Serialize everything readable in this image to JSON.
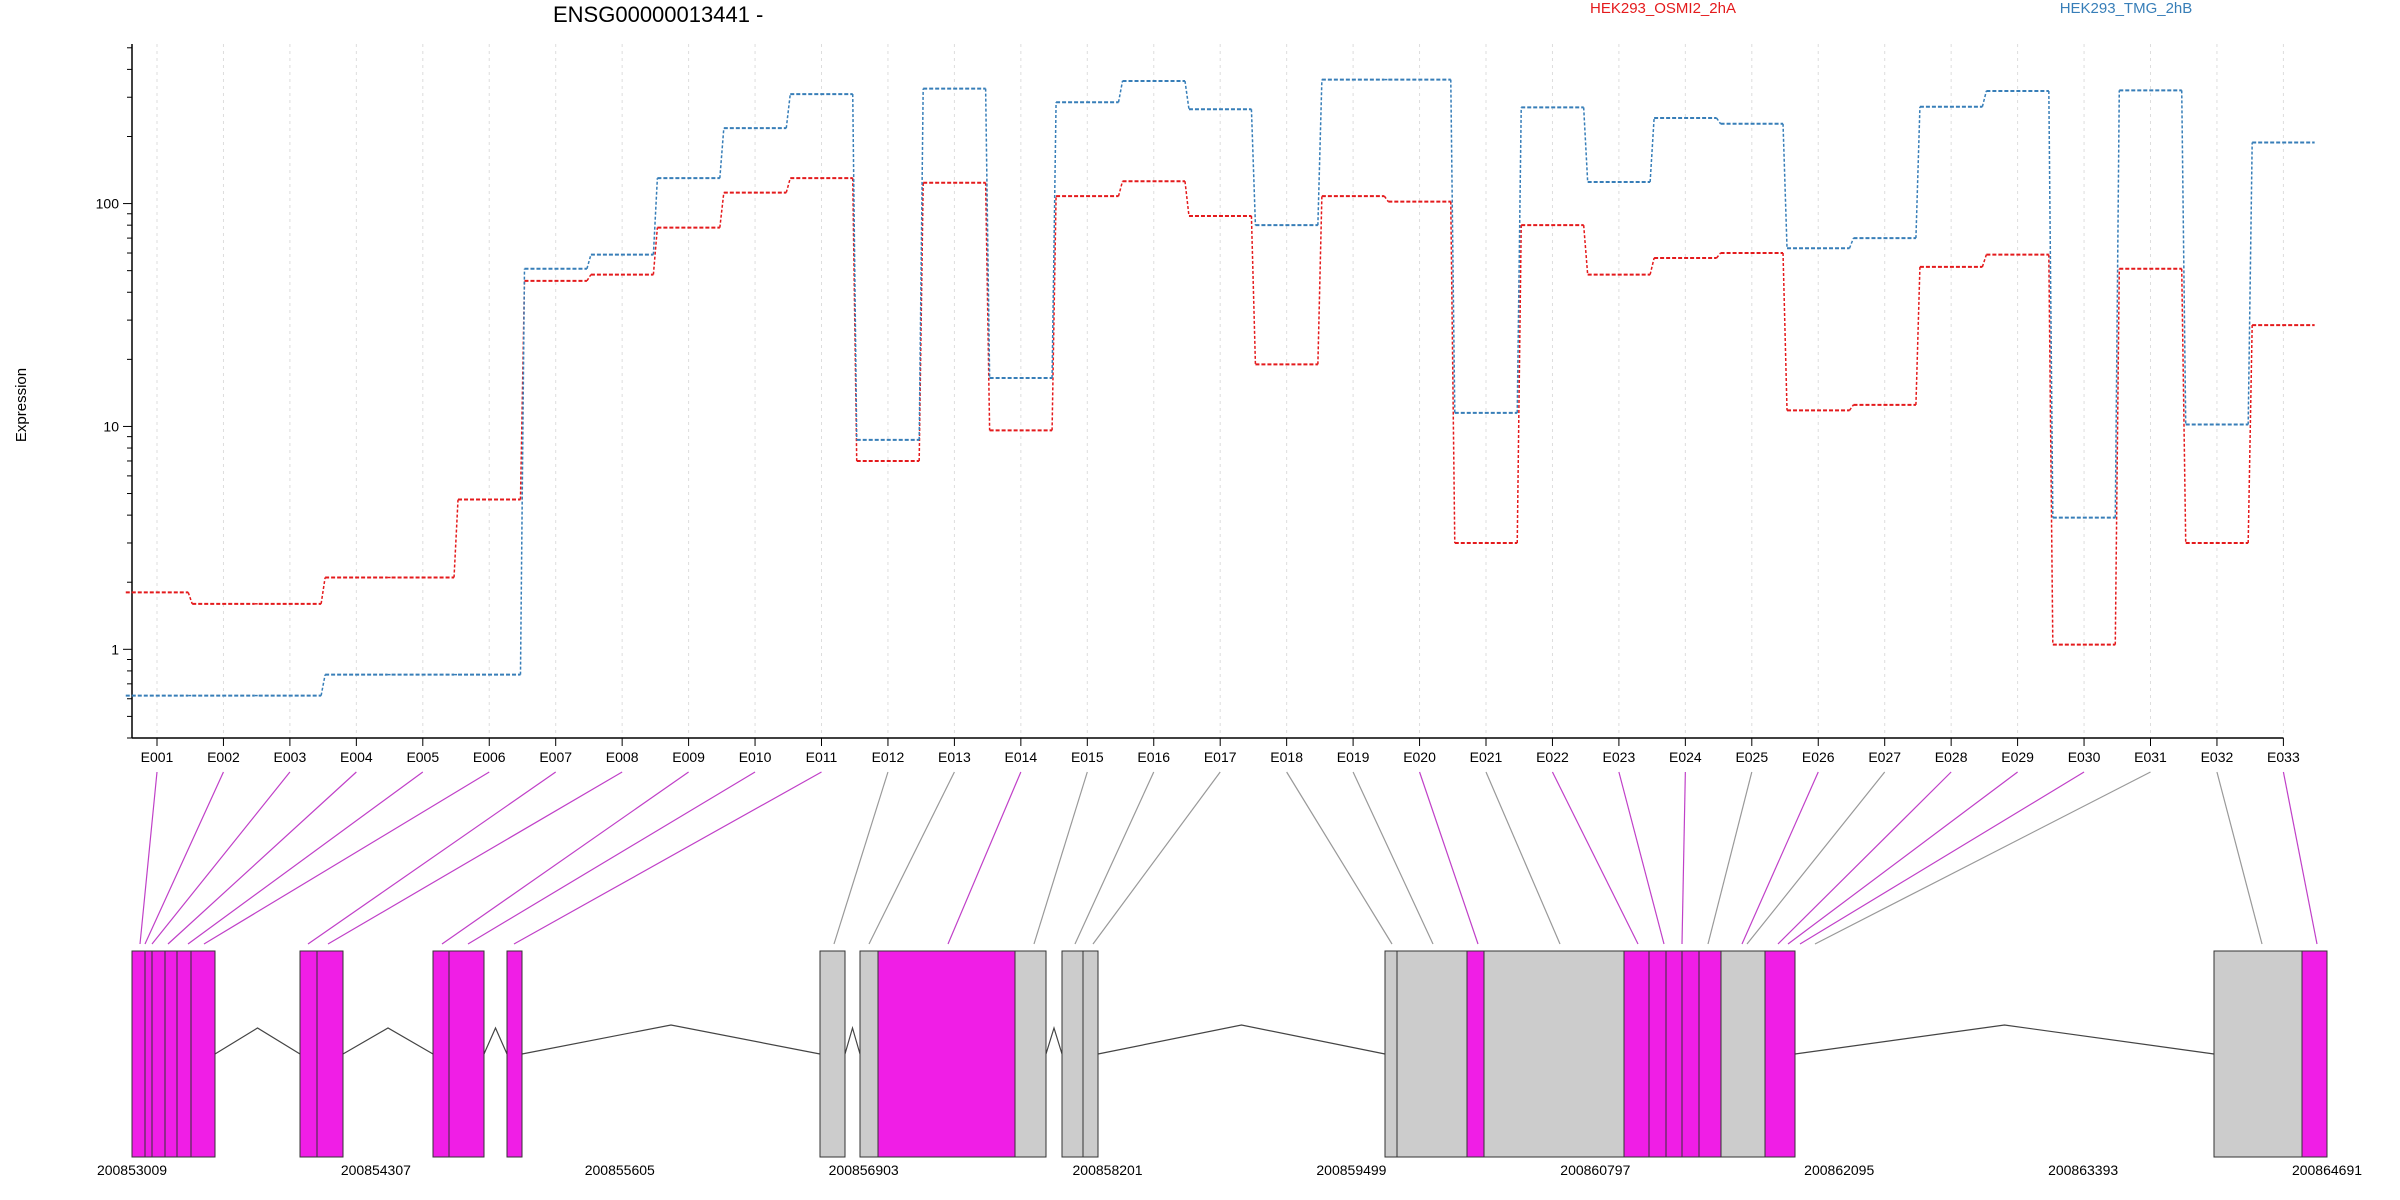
{
  "chart_data": {
    "type": "line",
    "title": "ENSG00000013441 -",
    "ylabel": "Expression",
    "xlabel": "",
    "y_scale": "log",
    "ylim": [
      0.4,
      520
    ],
    "grid": "vertical dotted lines at exon ticks",
    "legend": "top-right",
    "x_tick_labels": [
      1,
      10,
      100
    ],
    "categories": [
      "E001",
      "E002",
      "E003",
      "E004",
      "E005",
      "E006",
      "E007",
      "E008",
      "E009",
      "E010",
      "E011",
      "E012",
      "E013",
      "E014",
      "E015",
      "E016",
      "E017",
      "E018",
      "E019",
      "E020",
      "E021",
      "E022",
      "E023",
      "E024",
      "E025",
      "E026",
      "E027",
      "E028",
      "E029",
      "E030",
      "E031",
      "E032",
      "E033"
    ],
    "series": [
      {
        "name": "HEK293_OSMI2_2hA",
        "color": "#e41a1c",
        "values": [
          1.8,
          1.6,
          1.6,
          2.1,
          2.1,
          4.7,
          45,
          48,
          78,
          112,
          130,
          7.0,
          124,
          9.6,
          108,
          126,
          88,
          19,
          108,
          102,
          3.0,
          80,
          48,
          57,
          60,
          11.8,
          12.5,
          52,
          59,
          1.05,
          51,
          3.0,
          28.5
        ]
      },
      {
        "name": "HEK293_TMG_2hB",
        "color": "#377eb8",
        "values": [
          0.62,
          0.62,
          0.62,
          0.77,
          0.77,
          0.77,
          51,
          59,
          130,
          218,
          310,
          8.7,
          328,
          16.5,
          285,
          355,
          265,
          80,
          360,
          360,
          11.5,
          270,
          125,
          242,
          228,
          63,
          70,
          272,
          320,
          3.9,
          322,
          10.2,
          188
        ]
      }
    ],
    "gene_model": {
      "genomic_axis_labels": [
        "200853009",
        "200854307",
        "200855605",
        "200856903",
        "200858201",
        "200859499",
        "200860797",
        "200862095",
        "200863393",
        "200864691"
      ]
    }
  },
  "colors": {
    "exon_highlight": "#f01ee6",
    "exon_plain": "#cccccc",
    "connector_highlight": "#c040c8",
    "connector_plain": "#999999"
  }
}
